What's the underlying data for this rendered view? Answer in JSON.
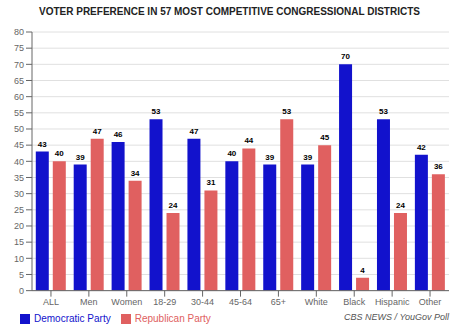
{
  "chart_data": {
    "type": "bar",
    "title": "VOTER PREFERENCE IN 57 MOST COMPETITIVE CONGRESSIONAL DISTRICTS",
    "categories": [
      "ALL",
      "Men",
      "Women",
      "18-29",
      "30-44",
      "45-64",
      "65+",
      "White",
      "Black",
      "Hispanic",
      "Other"
    ],
    "series": [
      {
        "name": "Democratic Party",
        "color": "#1212CC",
        "values": [
          43,
          39,
          46,
          53,
          47,
          40,
          39,
          39,
          70,
          53,
          42
        ]
      },
      {
        "name": "Republican Party",
        "color": "#E06060",
        "values": [
          40,
          47,
          34,
          24,
          31,
          44,
          53,
          45,
          4,
          24,
          36
        ]
      }
    ],
    "ylim": [
      0,
      80
    ],
    "yticks": [
      0,
      5,
      10,
      15,
      20,
      25,
      30,
      35,
      40,
      45,
      50,
      55,
      60,
      65,
      70,
      75,
      80
    ],
    "grid": true,
    "legend": "lower left",
    "data_labels": true,
    "annotations": [
      "CBS NEWS / YouGov Poll"
    ]
  }
}
